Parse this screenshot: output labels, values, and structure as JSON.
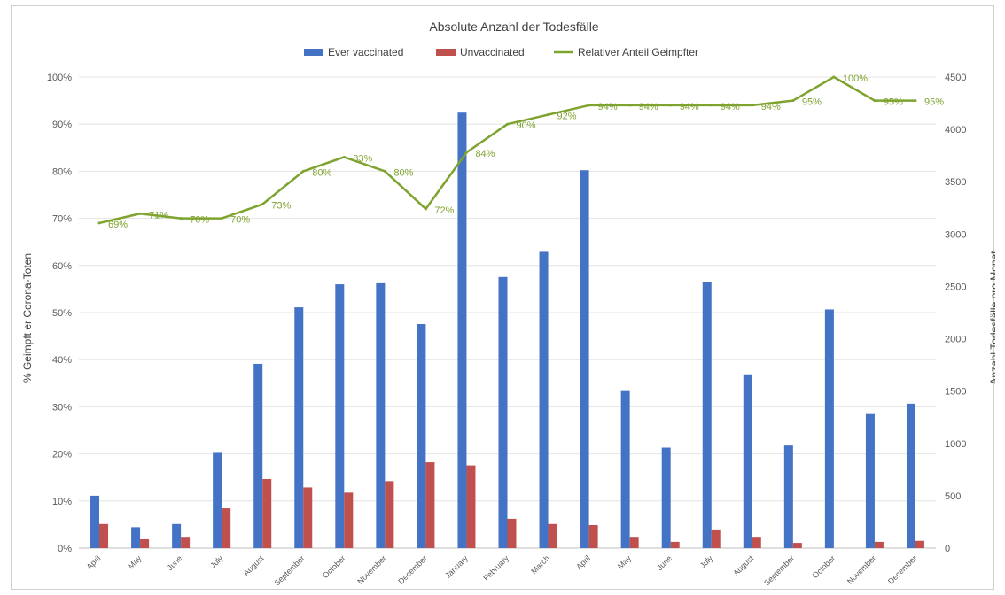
{
  "chart_data": {
    "type": "bar",
    "title": "Absolute Anzahl der Todesfälle",
    "ylabel_left": "% Geimpft er Corona-Toten",
    "ylabel_right": "Anzahl Todesfälle pro Monat",
    "xlabel": "",
    "ylim_left": [
      0,
      100
    ],
    "ylim_right": [
      0,
      4500
    ],
    "yticks_left": [
      "0%",
      "10%",
      "20%",
      "30%",
      "40%",
      "50%",
      "60%",
      "70%",
      "80%",
      "90%",
      "100%"
    ],
    "yticks_right": [
      "0",
      "500",
      "1000",
      "1500",
      "2000",
      "2500",
      "3000",
      "3500",
      "4000",
      "4500"
    ],
    "grid": true,
    "legend_position": "top-center",
    "categories": [
      "April",
      "May",
      "June",
      "July",
      "August",
      "September",
      "October",
      "November",
      "December",
      "January",
      "February",
      "March",
      "April",
      "May",
      "June",
      "July",
      "August",
      "September",
      "October",
      "November",
      "December"
    ],
    "series": [
      {
        "name": "Ever vaccinated",
        "type": "bar",
        "axis": "right",
        "color": "#4472c4",
        "values": [
          500,
          200,
          230,
          910,
          1760,
          2300,
          2520,
          2530,
          2140,
          4160,
          2590,
          2830,
          3610,
          1500,
          960,
          2540,
          1660,
          980,
          2280,
          1280,
          1380
        ]
      },
      {
        "name": "Unvaccinated",
        "type": "bar",
        "axis": "right",
        "color": "#c0504d",
        "values": [
          230,
          85,
          100,
          380,
          660,
          580,
          530,
          640,
          820,
          790,
          280,
          230,
          220,
          100,
          60,
          170,
          100,
          50,
          0,
          60,
          70
        ]
      },
      {
        "name": "Relativer Anteil Geimpfter",
        "type": "line",
        "axis": "left",
        "color": "#7ea32f",
        "values": [
          69,
          71,
          70,
          70,
          73,
          80,
          83,
          80,
          72,
          84,
          90,
          92,
          94,
          94,
          94,
          94,
          94,
          95,
          100,
          95,
          95
        ],
        "labels": [
          "69%",
          "71%",
          "70%",
          "70%",
          "73%",
          "80%",
          "83%",
          "80%",
          "72%",
          "84%",
          "90%",
          "92%",
          "94%",
          "94%",
          "94%",
          "94%",
          "94%",
          "95%",
          "100%",
          "95%",
          "95%"
        ]
      }
    ]
  }
}
